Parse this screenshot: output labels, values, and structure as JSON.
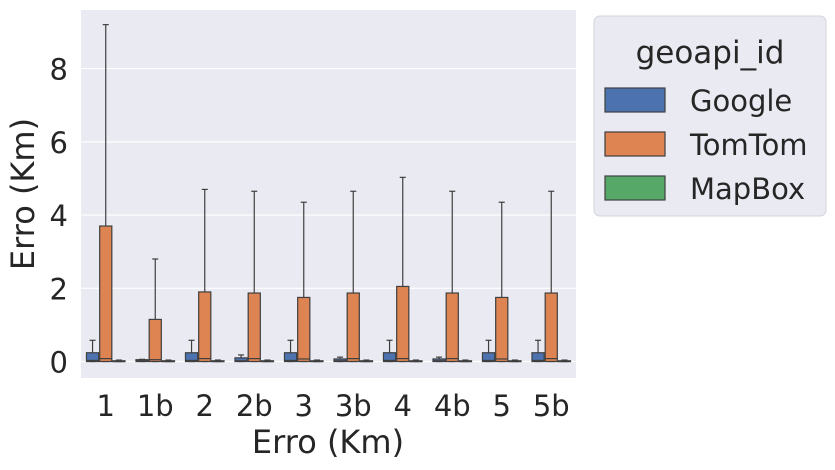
{
  "chart_data": {
    "type": "box",
    "categories": [
      "1",
      "1b",
      "2",
      "2b",
      "3",
      "3b",
      "4",
      "4b",
      "5",
      "5b"
    ],
    "xlabel": "Erro (Km)",
    "ylabel": "Erro (Km)",
    "ylim": [
      -0.45,
      9.6
    ],
    "yticks": [
      0,
      2,
      4,
      6,
      8
    ],
    "grid": true,
    "legend": {
      "title": "geoapi_id",
      "placement": "outside-right-top"
    },
    "series": [
      {
        "name": "Google",
        "color": "#4c72b0",
        "boxes": [
          {
            "whislo": 0,
            "q1": 0.0,
            "med": 0.03,
            "q3": 0.24,
            "whishi": 0.58
          },
          {
            "whislo": 0,
            "q1": 0.0,
            "med": 0.02,
            "q3": 0.05,
            "whishi": 0.06
          },
          {
            "whislo": 0,
            "q1": 0.0,
            "med": 0.03,
            "q3": 0.24,
            "whishi": 0.58
          },
          {
            "whislo": 0,
            "q1": 0.0,
            "med": 0.02,
            "q3": 0.1,
            "whishi": 0.18
          },
          {
            "whislo": 0,
            "q1": 0.0,
            "med": 0.03,
            "q3": 0.24,
            "whishi": 0.58
          },
          {
            "whislo": 0,
            "q1": 0.0,
            "med": 0.02,
            "q3": 0.07,
            "whishi": 0.12
          },
          {
            "whislo": 0,
            "q1": 0.0,
            "med": 0.03,
            "q3": 0.24,
            "whishi": 0.58
          },
          {
            "whislo": 0,
            "q1": 0.0,
            "med": 0.02,
            "q3": 0.07,
            "whishi": 0.12
          },
          {
            "whislo": 0,
            "q1": 0.0,
            "med": 0.03,
            "q3": 0.24,
            "whishi": 0.58
          },
          {
            "whislo": 0,
            "q1": 0.0,
            "med": 0.03,
            "q3": 0.24,
            "whishi": 0.58
          }
        ]
      },
      {
        "name": "TomTom",
        "color": "#dd8452",
        "boxes": [
          {
            "whislo": 0,
            "q1": 0.0,
            "med": 0.08,
            "q3": 3.7,
            "whishi": 9.2
          },
          {
            "whislo": 0,
            "q1": 0.0,
            "med": 0.05,
            "q3": 1.15,
            "whishi": 2.8
          },
          {
            "whislo": 0,
            "q1": 0.0,
            "med": 0.08,
            "q3": 1.9,
            "whishi": 4.7
          },
          {
            "whislo": 0,
            "q1": 0.0,
            "med": 0.08,
            "q3": 1.87,
            "whishi": 4.65
          },
          {
            "whislo": 0,
            "q1": 0.0,
            "med": 0.07,
            "q3": 1.75,
            "whishi": 4.35
          },
          {
            "whislo": 0,
            "q1": 0.0,
            "med": 0.08,
            "q3": 1.87,
            "whishi": 4.65
          },
          {
            "whislo": 0,
            "q1": 0.0,
            "med": 0.08,
            "q3": 2.05,
            "whishi": 5.03
          },
          {
            "whislo": 0,
            "q1": 0.0,
            "med": 0.08,
            "q3": 1.87,
            "whishi": 4.65
          },
          {
            "whislo": 0,
            "q1": 0.0,
            "med": 0.07,
            "q3": 1.75,
            "whishi": 4.35
          },
          {
            "whislo": 0,
            "q1": 0.0,
            "med": 0.08,
            "q3": 1.87,
            "whishi": 4.65
          }
        ]
      },
      {
        "name": "MapBox",
        "color": "#55a868",
        "boxes": [
          {
            "whislo": 0,
            "q1": 0.0,
            "med": 0.0,
            "q3": 0.02,
            "whishi": 0.04
          },
          {
            "whislo": 0,
            "q1": 0.0,
            "med": 0.0,
            "q3": 0.02,
            "whishi": 0.04
          },
          {
            "whislo": 0,
            "q1": 0.0,
            "med": 0.0,
            "q3": 0.02,
            "whishi": 0.04
          },
          {
            "whislo": 0,
            "q1": 0.0,
            "med": 0.0,
            "q3": 0.02,
            "whishi": 0.04
          },
          {
            "whislo": 0,
            "q1": 0.0,
            "med": 0.0,
            "q3": 0.02,
            "whishi": 0.04
          },
          {
            "whislo": 0,
            "q1": 0.0,
            "med": 0.0,
            "q3": 0.02,
            "whishi": 0.04
          },
          {
            "whislo": 0,
            "q1": 0.0,
            "med": 0.0,
            "q3": 0.02,
            "whishi": 0.04
          },
          {
            "whislo": 0,
            "q1": 0.0,
            "med": 0.0,
            "q3": 0.02,
            "whishi": 0.04
          },
          {
            "whislo": 0,
            "q1": 0.0,
            "med": 0.0,
            "q3": 0.02,
            "whishi": 0.04
          },
          {
            "whislo": 0,
            "q1": 0.0,
            "med": 0.0,
            "q3": 0.02,
            "whishi": 0.04
          }
        ]
      }
    ]
  }
}
